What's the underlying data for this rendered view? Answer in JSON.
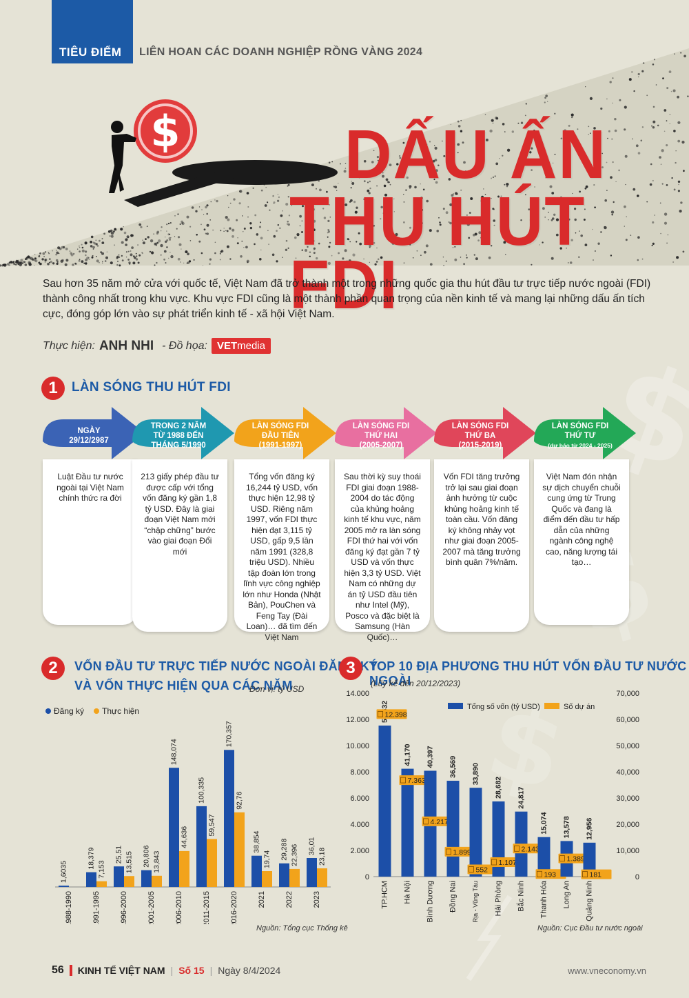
{
  "header": {
    "kicker": "TIÊU ĐIỂM",
    "section": "LIÊN HOAN CÁC DOANH NGHIỆP RỒNG VÀNG 2024"
  },
  "hero": {
    "title_line1": "DẤU ẤN",
    "title_line2": "THU HÚT FDI",
    "accent_color": "#d92b2b"
  },
  "intro": "Sau hơn 35 năm mở cửa với quốc tế, Việt Nam đã trở thành một trong những quốc gia thu hút đầu tư trực tiếp nước ngoài (FDI) thành công nhất trong khu vực. Khu vực FDI cũng là một thành phần quan trọng của nền kinh tế và mang lại những dấu ấn tích cực, đóng góp lớn vào sự phát triển kinh tế - xã hội Việt Nam.",
  "byline": {
    "author_label": "Thực hiện:",
    "author": "ANH NHI",
    "design_label": "- Đồ họa:",
    "logo_bold": "VET",
    "logo_light": "media"
  },
  "section1": {
    "number": "1",
    "title": "LÀN SÓNG THU HÚT FDI",
    "stages": [
      {
        "head": [
          "NGÀY",
          "29/12/2987"
        ],
        "color": "#3b63b5",
        "body": "Luật Đầu tư nước ngoài tại Việt Nam chính thức ra đời"
      },
      {
        "head": [
          "TRONG 2 NĂM",
          "TỪ 1988 ĐẾN",
          "THÁNG 5/1990"
        ],
        "color": "#1f98b0",
        "body": "213 giấy phép đầu tư được cấp với tổng vốn đăng ký gần 1,8 tỷ USD. Đây là giai đoạn Việt Nam mới “chập chững” bước vào giai đoạn Đổi mới"
      },
      {
        "head": [
          "LÀN SÓNG FDI",
          "ĐẦU TIÊN",
          "(1991-1997)"
        ],
        "color": "#f2a31b",
        "body": "Tổng vốn đăng ký 16,244 tỷ USD, vốn thực hiện 12,98 tỷ USD. Riêng năm 1997, vốn FDI thực hiện đạt 3,115 tỷ USD, gấp 9,5 lần năm 1991 (328,8 triệu USD). Nhiều tập đoàn lớn trong lĩnh vực công nghiệp lớn như Honda (Nhật Bản), PouChen và Feng Tay (Đài Loan)… đã tìm đến Việt Nam"
      },
      {
        "head": [
          "LÀN SÓNG FDI",
          "THỨ HAI",
          "(2005-2007)"
        ],
        "color": "#e86fa0",
        "body": "Sau thời kỳ suy thoái FDI giai đoạn 1988-2004 do tác động của khủng hoảng kinh tế khu vực, năm 2005 mở ra làn sóng FDI thứ hai với vốn đăng ký đạt gần 7 tỷ USD và vốn thực hiện 3,3 tỷ USD. Việt Nam có những dự án tỷ USD đầu tiên như Intel (Mỹ), Posco và đặc biệt là Samsung (Hàn Quốc)…"
      },
      {
        "head": [
          "LÀN SÓNG FDI",
          "THỨ BA",
          "(2015-2019)"
        ],
        "color": "#e0465a",
        "body": "Vốn FDI tăng trưởng trở lại sau giai đoạn ảnh hưởng từ cuộc khủng hoảng kinh tế toàn cầu. Vốn đăng ký không nhảy vọt như giai đoạn 2005-2007 mà tăng trưởng bình quân 7%/năm."
      },
      {
        "head": [
          "LÀN SÓNG FDI",
          "THỨ TƯ",
          "(dự báo từ 2024 - 2025)"
        ],
        "color": "#23a857",
        "body": "Việt Nam đón nhận sự dịch chuyển chuỗi cung ứng từ Trung Quốc và đang là điểm đến đầu tư hấp dẫn của những ngành công nghệ cao, năng lượng tái tạo…"
      }
    ]
  },
  "section2": {
    "number": "2",
    "title_line1": "VỐN ĐẦU TƯ TRỰC TIẾP NƯỚC NGOÀI ĐĂNG KÝ",
    "title_line2": "VÀ VỐN THỰC HIỆN QUA CÁC NĂM",
    "unit": "Đơn vị: tỷ USD",
    "source": "Nguồn: Tổng cục Thống kê"
  },
  "section3": {
    "number": "3",
    "title": "TOP 10 ĐỊA PHƯƠNG THU HÚT VỐN ĐẦU TƯ NƯỚC NGOÀI",
    "subtitle": "(Lũy kế đến 20/12/2023)",
    "source": "Nguồn: Cục Đầu tư nước ngoài"
  },
  "chart_data": [
    {
      "type": "bar",
      "categories": [
        "1988-1990",
        "1991-1995",
        "1996-2000",
        "2001-2005",
        "2006-2010",
        "2011-2015",
        "2016-2020",
        "2021",
        "2022",
        "2023"
      ],
      "series": [
        {
          "name": "Đăng ký",
          "color": "#1c4fa8",
          "values": [
            1.6035,
            18.379,
            25.51,
            20.806,
            148.074,
            100.335,
            170.357,
            38.854,
            29.288,
            36.01
          ],
          "labels": [
            "1,6035",
            "18,379",
            "25,51",
            "20,806",
            "148,074",
            "100,335",
            "170,357",
            "38,854",
            "29,288",
            "36,01"
          ]
        },
        {
          "name": "Thực hiện",
          "color": "#f2a31b",
          "values": [
            0,
            7.153,
            13.515,
            13.843,
            44.636,
            59.547,
            92.76,
            19.74,
            22.396,
            23.18
          ],
          "labels": [
            "",
            "7,153",
            "13,515",
            "13,843",
            "44,636",
            "59,547",
            "92,76",
            "19,74",
            "22,396",
            "23,18"
          ]
        }
      ],
      "ylim": [
        0,
        180
      ]
    },
    {
      "type": "bar",
      "categories": [
        "TP.HCM",
        "Hà Nội",
        "Bình Dương",
        "Đồng Nai",
        "Bà Rịa - Vũng Tàu",
        "Hải Phòng",
        "Bắc Ninh",
        "Thanh Hóa",
        "Long An",
        "Quảng Ninh"
      ],
      "series": [
        {
          "name": "Tổng số vốn (tỷ USD)",
          "color": "#1c4fa8",
          "axis": "right",
          "values": [
            57632,
            41170,
            40397,
            36569,
            33890,
            28682,
            24817,
            15074,
            13578,
            12956
          ],
          "labels": [
            "57,632",
            "41,170",
            "40,397",
            "36,569",
            "33,890",
            "28,682",
            "24,817",
            "15,074",
            "13,578",
            "12,956"
          ]
        },
        {
          "name": "Số dự án",
          "color": "#f2a31b",
          "axis": "left",
          "values": [
            12398,
            7363,
            4217,
            1899,
            552,
            1107,
            2143,
            193,
            1389,
            181
          ],
          "labels": [
            "12.398",
            "7.363",
            "4.217",
            "1.899",
            "552",
            "1.107",
            "2.143",
            "193",
            "1.389",
            "181"
          ]
        }
      ],
      "ylim_left": [
        0,
        14000
      ],
      "ylim_right": [
        0,
        70000
      ],
      "left_ticks": [
        "0",
        "2.000",
        "4.000",
        "6.000",
        "8.000",
        "10.000",
        "12.000",
        "14.000"
      ],
      "right_ticks": [
        "0",
        "10,000",
        "20,000",
        "30,000",
        "40,000",
        "50,000",
        "60,000",
        "70,000"
      ]
    }
  ],
  "footer": {
    "page": "56",
    "magazine": "KINH TẾ VIỆT NAM",
    "issue": "Số 15",
    "date": "Ngày 8/4/2024",
    "website": "www.vneconomy.vn"
  }
}
